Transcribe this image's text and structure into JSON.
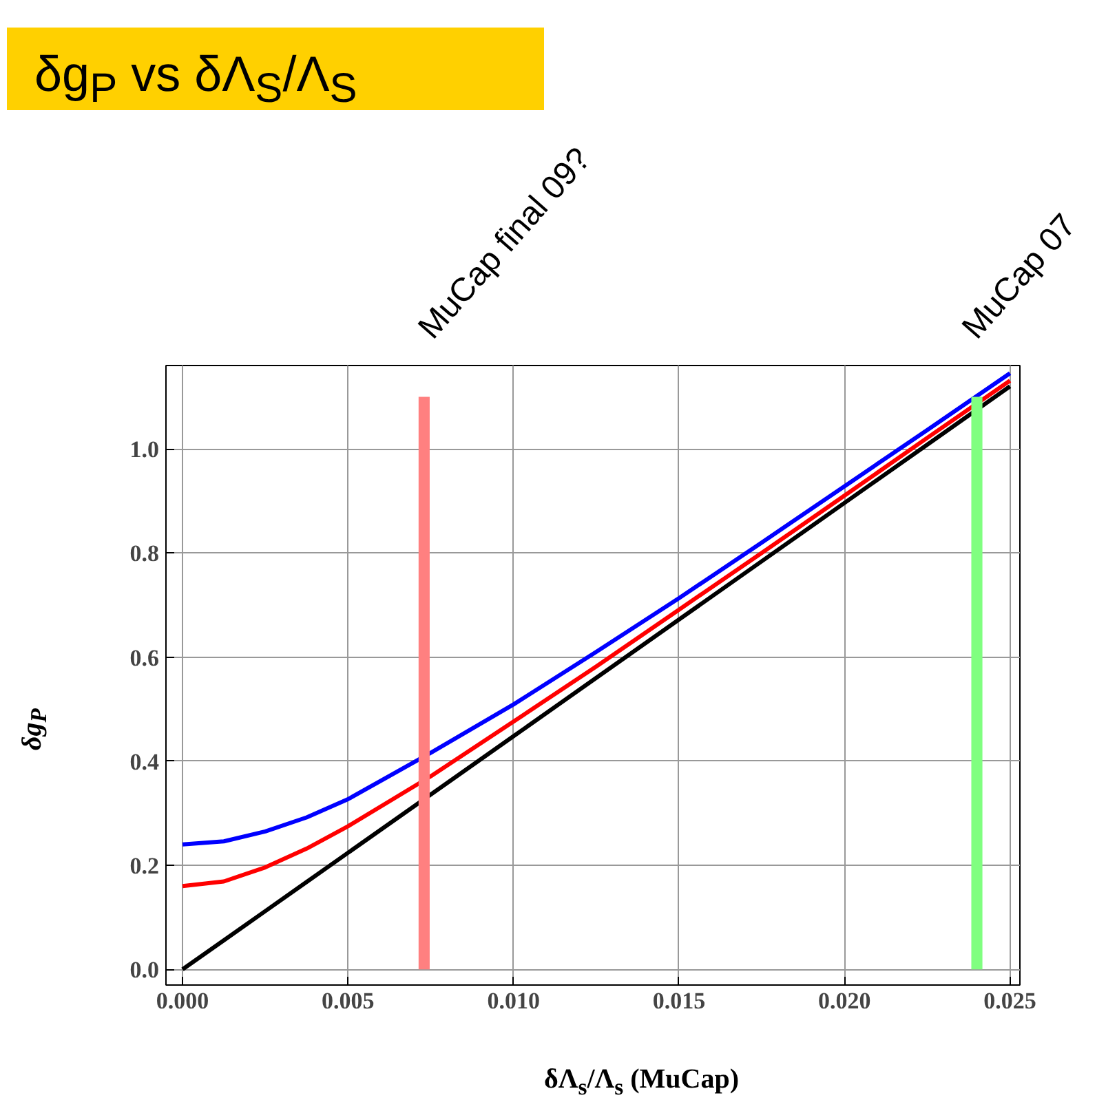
{
  "chart_data": {
    "type": "line",
    "title": "δg$_{P}$ vs δΛ$_{S}$/Λ$_{S}$",
    "xlabel": "δΛ$_{s}$/Λ$_{s}$ (MuCap)",
    "ylabel": "δg$_{P}$",
    "x": [
      0,
      0.00125,
      0.0025,
      0.00375,
      0.005,
      0.0075,
      0.01,
      0.0125,
      0.015,
      0.0175,
      0.02,
      0.0225,
      0.025
    ],
    "series": [
      {
        "color": "#0000ff",
        "values": [
          0.24,
          0.246,
          0.265,
          0.292,
          0.327,
          0.416,
          0.509,
          0.61,
          0.713,
          0.82,
          0.928,
          1.036,
          1.145
        ]
      },
      {
        "color": "#ff0000",
        "values": [
          0.16,
          0.169,
          0.196,
          0.232,
          0.275,
          0.371,
          0.476,
          0.582,
          0.691,
          0.8,
          0.91,
          1.021,
          1.131
        ]
      },
      {
        "color": "#000000",
        "values": [
          0,
          0.056,
          0.112,
          0.168,
          0.224,
          0.336,
          0.448,
          0.56,
          0.672,
          0.784,
          0.896,
          1.008,
          1.12
        ]
      },
      {
        "name": "MuCap final 09?",
        "type": "bar",
        "color": "#ff8080",
        "x": [
          0.0073
        ],
        "values": [
          1.1
        ]
      },
      {
        "name": "MuCap 07",
        "type": "bar",
        "color": "#80ff80",
        "x": [
          0.024
        ],
        "values": [
          1.1
        ]
      }
    ],
    "xlim": [
      -0.0005,
      0.0253
    ],
    "ylim": [
      -0.03,
      1.16
    ],
    "xticks": [
      {
        "value": 0,
        "label": "0.000"
      },
      {
        "value": 0.005,
        "label": "0.005"
      },
      {
        "value": 0.01,
        "label": "0.010"
      },
      {
        "value": 0.015,
        "label": "0.015"
      },
      {
        "value": 0.02,
        "label": "0.020"
      },
      {
        "value": 0.025,
        "label": "0.025"
      }
    ],
    "yticks": [
      {
        "value": 0,
        "label": "0.0"
      },
      {
        "value": 0.2,
        "label": "0.2"
      },
      {
        "value": 0.4,
        "label": "0.4"
      },
      {
        "value": 0.6,
        "label": "0.6"
      },
      {
        "value": 0.8,
        "label": "0.8"
      },
      {
        "value": 1.0,
        "label": "1.0"
      }
    ],
    "grid": true
  }
}
